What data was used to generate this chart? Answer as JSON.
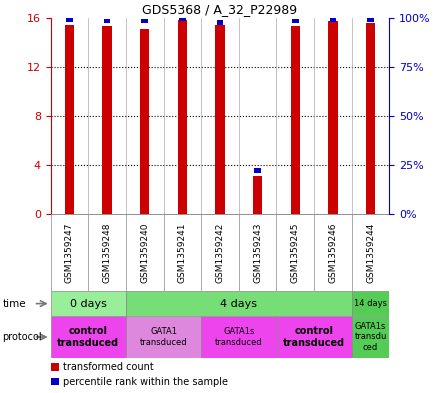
{
  "title": "GDS5368 / A_32_P22989",
  "samples": [
    "GSM1359247",
    "GSM1359248",
    "GSM1359240",
    "GSM1359241",
    "GSM1359242",
    "GSM1359243",
    "GSM1359245",
    "GSM1359246",
    "GSM1359244"
  ],
  "red_values": [
    15.4,
    15.3,
    15.1,
    15.85,
    15.4,
    3.1,
    15.3,
    15.7,
    15.6
  ],
  "blue_percentile_values": [
    15.85,
    15.75,
    15.75,
    15.9,
    15.6,
    3.55,
    15.75,
    15.85,
    15.85
  ],
  "ylim": [
    0,
    16
  ],
  "y_left_ticks": [
    0,
    4,
    8,
    12,
    16
  ],
  "y_right_ticks": [
    0,
    25,
    50,
    75,
    100
  ],
  "left_color": "#cc0000",
  "right_color": "#0000cc",
  "time_groups": [
    {
      "label": "0 days",
      "start": 0,
      "end": 2,
      "color": "#99ee99"
    },
    {
      "label": "4 days",
      "start": 2,
      "end": 8,
      "color": "#77dd77"
    },
    {
      "label": "14 days",
      "start": 8,
      "end": 9,
      "color": "#55cc55"
    }
  ],
  "protocol_groups": [
    {
      "label": "control\ntransduced",
      "start": 0,
      "end": 2,
      "color": "#ee44ee",
      "bold": true
    },
    {
      "label": "GATA1\ntransduced",
      "start": 2,
      "end": 4,
      "color": "#dd88dd",
      "bold": false
    },
    {
      "label": "GATA1s\ntransduced",
      "start": 4,
      "end": 6,
      "color": "#ee44ee",
      "bold": false
    },
    {
      "label": "control\ntransduced",
      "start": 6,
      "end": 8,
      "color": "#ee44ee",
      "bold": true
    },
    {
      "label": "GATA1s\ntransdu\nced",
      "start": 8,
      "end": 9,
      "color": "#55cc55",
      "bold": false
    }
  ],
  "bg_color": "#ffffff",
  "sample_bg": "#cccccc",
  "bar_width": 0.25
}
